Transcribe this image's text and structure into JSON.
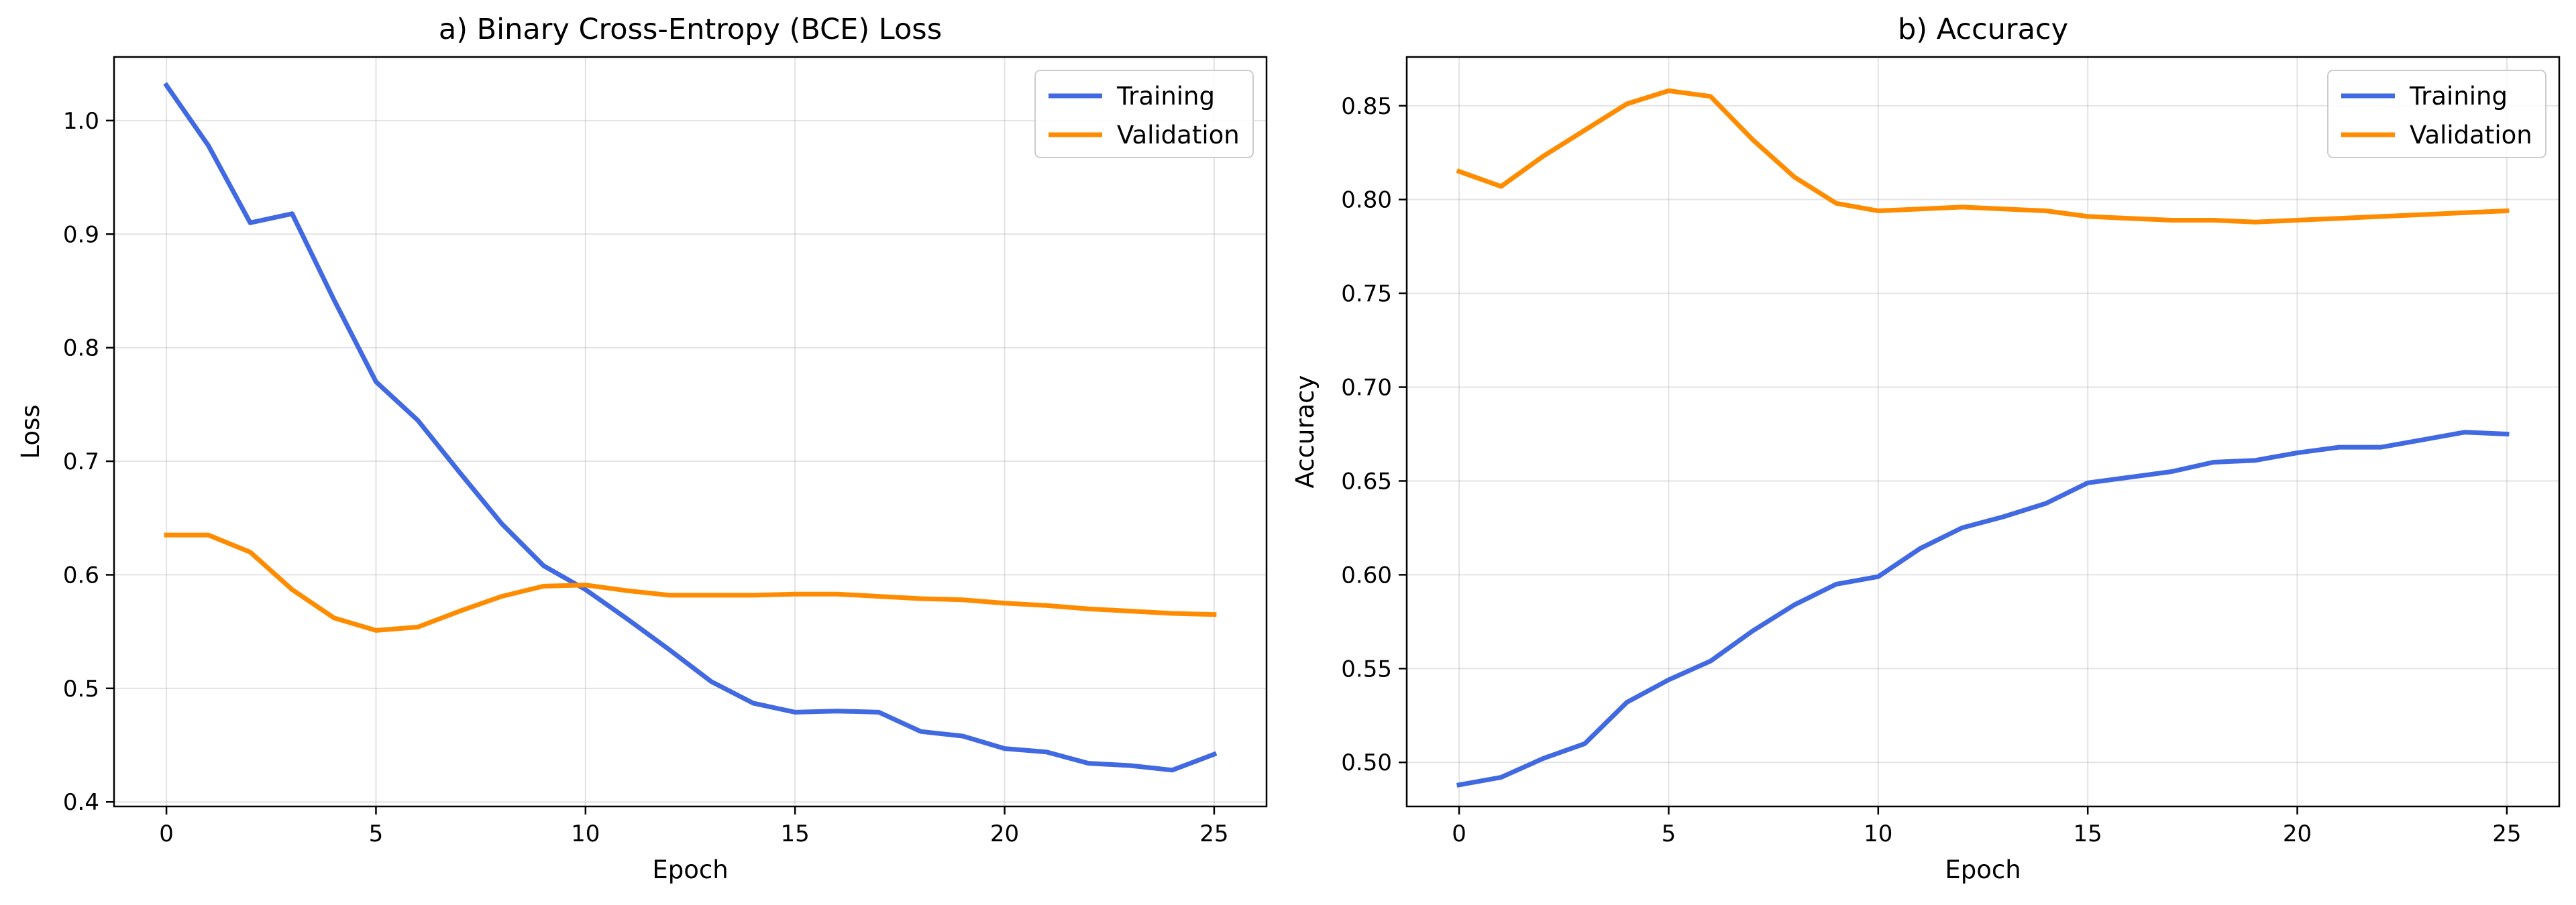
{
  "chart_data": [
    {
      "type": "line",
      "title": "a) Binary Cross-Entropy (BCE) Loss",
      "xlabel": "Epoch",
      "ylabel": "Loss",
      "xlim": [
        -1.25,
        26.25
      ],
      "ylim": [
        0.396,
        1.056
      ],
      "xticks": [
        0,
        5,
        10,
        15,
        20,
        25
      ],
      "yticks": [
        0.4,
        0.5,
        0.6,
        0.7,
        0.8,
        0.9,
        1.0
      ],
      "ytick_labels": [
        "0.4",
        "0.5",
        "0.6",
        "0.7",
        "0.8",
        "0.9",
        "1.0"
      ],
      "grid": true,
      "legend_position": "top-right",
      "x": [
        0,
        1,
        2,
        3,
        4,
        5,
        6,
        7,
        8,
        9,
        10,
        11,
        12,
        13,
        14,
        15,
        16,
        17,
        18,
        19,
        20,
        21,
        22,
        23,
        24,
        25
      ],
      "series": [
        {
          "name": "Training",
          "color": "#4169e1",
          "values": [
            1.031,
            0.978,
            0.91,
            0.918,
            0.842,
            0.77,
            0.736,
            0.69,
            0.645,
            0.608,
            0.587,
            0.561,
            0.534,
            0.506,
            0.487,
            0.479,
            0.48,
            0.479,
            0.462,
            0.458,
            0.447,
            0.444,
            0.434,
            0.432,
            0.428,
            0.442
          ]
        },
        {
          "name": "Validation",
          "color": "#ff8c00",
          "values": [
            0.635,
            0.635,
            0.62,
            0.587,
            0.562,
            0.551,
            0.554,
            0.568,
            0.581,
            0.59,
            0.591,
            0.586,
            0.582,
            0.582,
            0.582,
            0.583,
            0.583,
            0.581,
            0.579,
            0.578,
            0.575,
            0.573,
            0.57,
            0.568,
            0.566,
            0.565
          ]
        }
      ]
    },
    {
      "type": "line",
      "title": "b) Accuracy",
      "xlabel": "Epoch",
      "ylabel": "Accuracy",
      "xlim": [
        -1.25,
        26.25
      ],
      "ylim": [
        0.4765,
        0.876
      ],
      "xticks": [
        0,
        5,
        10,
        15,
        20,
        25
      ],
      "yticks": [
        0.5,
        0.55,
        0.6,
        0.65,
        0.7,
        0.75,
        0.8,
        0.85
      ],
      "ytick_labels": [
        "0.50",
        "0.55",
        "0.60",
        "0.65",
        "0.70",
        "0.75",
        "0.80",
        "0.85"
      ],
      "grid": true,
      "legend_position": "top-right",
      "x": [
        0,
        1,
        2,
        3,
        4,
        5,
        6,
        7,
        8,
        9,
        10,
        11,
        12,
        13,
        14,
        15,
        16,
        17,
        18,
        19,
        20,
        21,
        22,
        23,
        24,
        25
      ],
      "series": [
        {
          "name": "Training",
          "color": "#4169e1",
          "values": [
            0.488,
            0.492,
            0.502,
            0.51,
            0.532,
            0.544,
            0.554,
            0.57,
            0.584,
            0.595,
            0.599,
            0.614,
            0.625,
            0.631,
            0.638,
            0.649,
            0.652,
            0.655,
            0.66,
            0.661,
            0.665,
            0.668,
            0.668,
            0.672,
            0.676,
            0.675
          ]
        },
        {
          "name": "Validation",
          "color": "#ff8c00",
          "values": [
            0.815,
            0.807,
            0.823,
            0.837,
            0.851,
            0.858,
            0.855,
            0.832,
            0.812,
            0.798,
            0.794,
            0.795,
            0.796,
            0.795,
            0.794,
            0.791,
            0.79,
            0.789,
            0.789,
            0.788,
            0.789,
            0.79,
            0.791,
            0.792,
            0.793,
            0.794
          ]
        }
      ]
    }
  ]
}
